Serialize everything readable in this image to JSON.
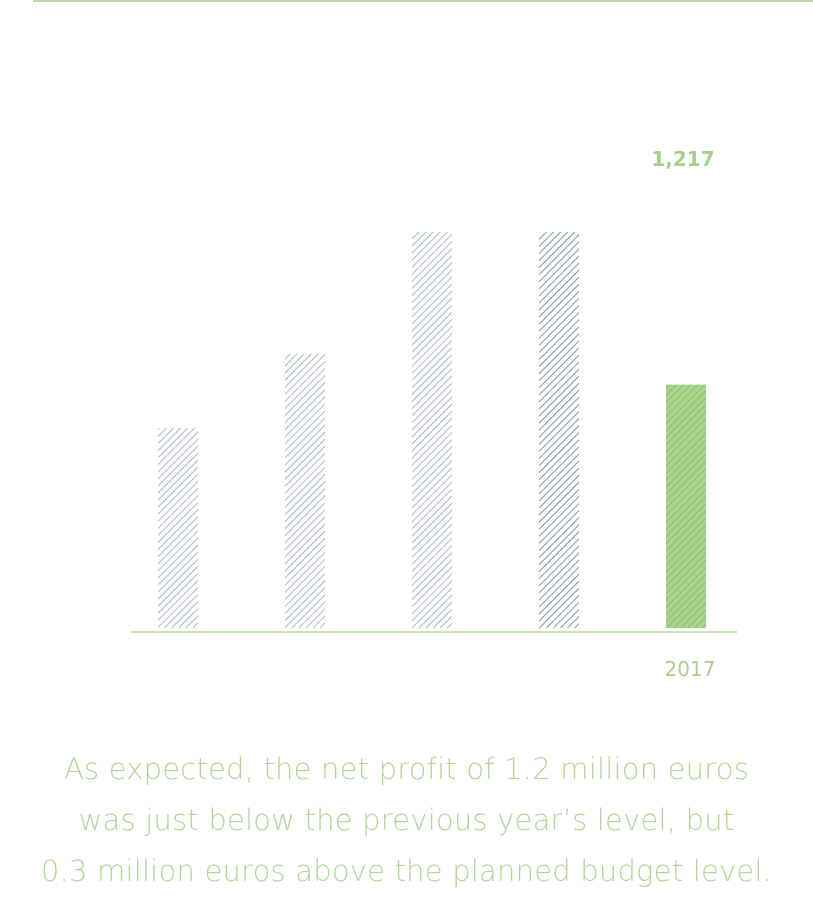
{
  "colors": {
    "rule": "#bcd9a6",
    "highlight": "#8ec36f",
    "highlight_label": "#a9cf8f",
    "hatch_default": "#7c8ea2",
    "caption": "#b2d69a"
  },
  "chart_data": {
    "type": "bar",
    "categories": [
      "",
      "",
      "",
      "",
      "2017"
    ],
    "values": [
      1.0,
      1.37,
      1.98,
      1.98,
      1.217
    ],
    "data_labels": [
      "",
      "",
      "",
      "",
      "1,217"
    ],
    "highlight_index": 4,
    "ylim": [
      0,
      2.0
    ],
    "title": "",
    "xlabel": "",
    "ylabel": "",
    "grid": false,
    "legend": "none"
  },
  "caption": {
    "line1": "As expected, the net profit of 1.2 million euros",
    "line2": "was just below the previous year’s level, but",
    "line3": "0.3 million euros above the planned budget level."
  }
}
